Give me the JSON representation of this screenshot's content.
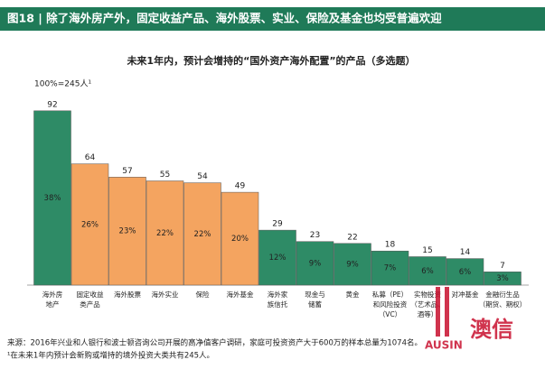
{
  "header": {
    "title": "图18 | 除了海外房产外，固定收益产品、海外股票、实业、保险及基金也均受普遍欢迎"
  },
  "chart_data": {
    "type": "bar",
    "title": "未来1年内，预计会增持的“国外资产海外配置”的产品（多选题）",
    "base_label": "100%=245人¹",
    "categories": [
      [
        "海外房",
        "地产"
      ],
      [
        "固定收益",
        "类产品"
      ],
      [
        "海外股票"
      ],
      [
        "海外实业"
      ],
      [
        "保险"
      ],
      [
        "海外基金"
      ],
      [
        "海外家",
        "族信托"
      ],
      [
        "现金与",
        "储蓄"
      ],
      [
        "黄金"
      ],
      [
        "私募（PE）",
        "和风险投资",
        "（VC）"
      ],
      [
        "实物投资",
        "（艺术品、",
        "酒等）"
      ],
      [
        "对冲基金"
      ],
      [
        "金融衍生品",
        "（期货、期权）"
      ]
    ],
    "values": [
      92,
      64,
      57,
      55,
      54,
      49,
      29,
      23,
      22,
      18,
      15,
      14,
      7
    ],
    "percent_labels": [
      "38%",
      "26%",
      "23%",
      "22%",
      "22%",
      "20%",
      "12%",
      "9%",
      "9%",
      "7%",
      "6%",
      "6%",
      "3%"
    ],
    "colors": [
      "#2e8b66",
      "#f4a460",
      "#f4a460",
      "#f4a460",
      "#f4a460",
      "#f4a460",
      "#2e8b66",
      "#2e8b66",
      "#2e8b66",
      "#2e8b66",
      "#2e8b66",
      "#2e8b66",
      "#2e8b66"
    ]
  },
  "source": "来源：2016年兴业和人银行和波士顿咨询公司开展的高净值客户调研，家庭可投资资产大于600万的样本总量为1074名。",
  "footnote": "¹在未来1年内预计会新购或增持的境外投资大类共有245人。",
  "logo": {
    "latin": "AUSIN",
    "chinese": "澳信"
  }
}
